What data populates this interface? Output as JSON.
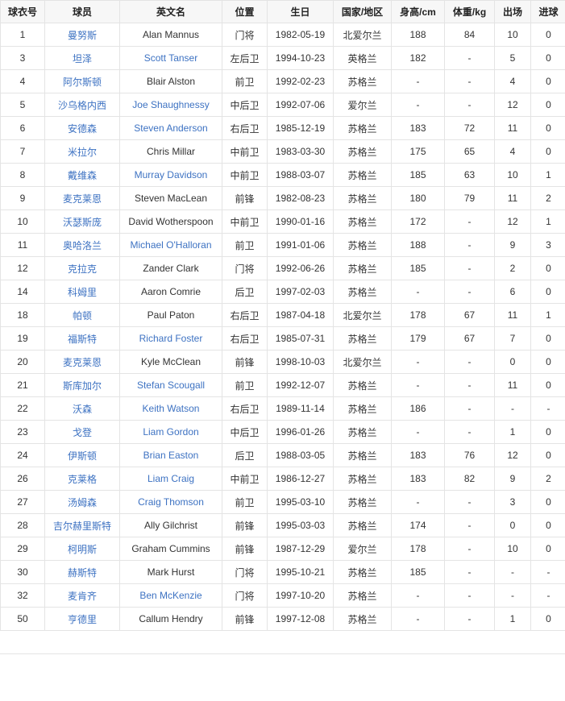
{
  "colors": {
    "link": "#3d72c2",
    "header_bg": "#f7f7f7",
    "border": "#e4e4e4"
  },
  "table": {
    "headers": [
      "球衣号",
      "球员",
      "英文名",
      "位置",
      "生日",
      "国家/地区",
      "身高/cm",
      "体重/kg",
      "出场",
      "进球"
    ],
    "rows": [
      {
        "num": "1",
        "cn": "曼努斯",
        "en": "Alan Mannus",
        "en_link": false,
        "pos": "门将",
        "dob": "1982-05-19",
        "country": "北爱尔兰",
        "height": "188",
        "weight": "84",
        "apps": "10",
        "goals": "0"
      },
      {
        "num": "3",
        "cn": "坦泽",
        "en": "Scott Tanser",
        "en_link": true,
        "pos": "左后卫",
        "dob": "1994-10-23",
        "country": "英格兰",
        "height": "182",
        "weight": "-",
        "apps": "5",
        "goals": "0"
      },
      {
        "num": "4",
        "cn": "阿尔斯顿",
        "en": "Blair Alston",
        "en_link": false,
        "pos": "前卫",
        "dob": "1992-02-23",
        "country": "苏格兰",
        "height": "-",
        "weight": "-",
        "apps": "4",
        "goals": "0"
      },
      {
        "num": "5",
        "cn": "沙乌格内西",
        "en": "Joe Shaughnessy",
        "en_link": true,
        "pos": "中后卫",
        "dob": "1992-07-06",
        "country": "爱尔兰",
        "height": "-",
        "weight": "-",
        "apps": "12",
        "goals": "0"
      },
      {
        "num": "6",
        "cn": "安德森",
        "en": "Steven Anderson",
        "en_link": true,
        "pos": "右后卫",
        "dob": "1985-12-19",
        "country": "苏格兰",
        "height": "183",
        "weight": "72",
        "apps": "11",
        "goals": "0"
      },
      {
        "num": "7",
        "cn": "米拉尔",
        "en": "Chris Millar",
        "en_link": false,
        "pos": "中前卫",
        "dob": "1983-03-30",
        "country": "苏格兰",
        "height": "175",
        "weight": "65",
        "apps": "4",
        "goals": "0"
      },
      {
        "num": "8",
        "cn": "戴维森",
        "en": "Murray Davidson",
        "en_link": true,
        "pos": "中前卫",
        "dob": "1988-03-07",
        "country": "苏格兰",
        "height": "185",
        "weight": "63",
        "apps": "10",
        "goals": "1"
      },
      {
        "num": "9",
        "cn": "麦克莱恩",
        "en": "Steven MacLean",
        "en_link": false,
        "pos": "前锋",
        "dob": "1982-08-23",
        "country": "苏格兰",
        "height": "180",
        "weight": "79",
        "apps": "11",
        "goals": "2"
      },
      {
        "num": "10",
        "cn": "沃瑟斯庞",
        "en": "David Wotherspoon",
        "en_link": false,
        "pos": "中前卫",
        "dob": "1990-01-16",
        "country": "苏格兰",
        "height": "172",
        "weight": "-",
        "apps": "12",
        "goals": "1"
      },
      {
        "num": "11",
        "cn": "奥哈洛兰",
        "en": "Michael O'Halloran",
        "en_link": true,
        "pos": "前卫",
        "dob": "1991-01-06",
        "country": "苏格兰",
        "height": "188",
        "weight": "-",
        "apps": "9",
        "goals": "3"
      },
      {
        "num": "12",
        "cn": "克拉克",
        "en": "Zander Clark",
        "en_link": false,
        "pos": "门将",
        "dob": "1992-06-26",
        "country": "苏格兰",
        "height": "185",
        "weight": "-",
        "apps": "2",
        "goals": "0"
      },
      {
        "num": "14",
        "cn": "科姆里",
        "en": "Aaron Comrie",
        "en_link": false,
        "pos": "后卫",
        "dob": "1997-02-03",
        "country": "苏格兰",
        "height": "-",
        "weight": "-",
        "apps": "6",
        "goals": "0"
      },
      {
        "num": "18",
        "cn": "帕顿",
        "en": "Paul Paton",
        "en_link": false,
        "pos": "右后卫",
        "dob": "1987-04-18",
        "country": "北爱尔兰",
        "height": "178",
        "weight": "67",
        "apps": "11",
        "goals": "1"
      },
      {
        "num": "19",
        "cn": "福斯特",
        "en": "Richard Foster",
        "en_link": true,
        "pos": "右后卫",
        "dob": "1985-07-31",
        "country": "苏格兰",
        "height": "179",
        "weight": "67",
        "apps": "7",
        "goals": "0"
      },
      {
        "num": "20",
        "cn": "麦克莱恩",
        "en": "Kyle McClean",
        "en_link": false,
        "pos": "前锋",
        "dob": "1998-10-03",
        "country": "北爱尔兰",
        "height": "-",
        "weight": "-",
        "apps": "0",
        "goals": "0"
      },
      {
        "num": "21",
        "cn": "斯库加尔",
        "en": "Stefan Scougall",
        "en_link": true,
        "pos": "前卫",
        "dob": "1992-12-07",
        "country": "苏格兰",
        "height": "-",
        "weight": "-",
        "apps": "11",
        "goals": "0"
      },
      {
        "num": "22",
        "cn": "沃森",
        "en": "Keith Watson",
        "en_link": true,
        "pos": "右后卫",
        "dob": "1989-11-14",
        "country": "苏格兰",
        "height": "186",
        "weight": "-",
        "apps": "-",
        "goals": "-"
      },
      {
        "num": "23",
        "cn": "戈登",
        "en": "Liam Gordon",
        "en_link": true,
        "pos": "中后卫",
        "dob": "1996-01-26",
        "country": "苏格兰",
        "height": "-",
        "weight": "-",
        "apps": "1",
        "goals": "0"
      },
      {
        "num": "24",
        "cn": "伊斯顿",
        "en": "Brian Easton",
        "en_link": true,
        "pos": "后卫",
        "dob": "1988-03-05",
        "country": "苏格兰",
        "height": "183",
        "weight": "76",
        "apps": "12",
        "goals": "0"
      },
      {
        "num": "26",
        "cn": "克莱格",
        "en": "Liam Craig",
        "en_link": true,
        "pos": "中前卫",
        "dob": "1986-12-27",
        "country": "苏格兰",
        "height": "183",
        "weight": "82",
        "apps": "9",
        "goals": "2"
      },
      {
        "num": "27",
        "cn": "汤姆森",
        "en": "Craig Thomson",
        "en_link": true,
        "pos": "前卫",
        "dob": "1995-03-10",
        "country": "苏格兰",
        "height": "-",
        "weight": "-",
        "apps": "3",
        "goals": "0"
      },
      {
        "num": "28",
        "cn": "吉尔赫里斯特",
        "en": "Ally Gilchrist",
        "en_link": false,
        "pos": "前锋",
        "dob": "1995-03-03",
        "country": "苏格兰",
        "height": "174",
        "weight": "-",
        "apps": "0",
        "goals": "0"
      },
      {
        "num": "29",
        "cn": "柯明斯",
        "en": "Graham Cummins",
        "en_link": false,
        "pos": "前锋",
        "dob": "1987-12-29",
        "country": "爱尔兰",
        "height": "178",
        "weight": "-",
        "apps": "10",
        "goals": "0"
      },
      {
        "num": "30",
        "cn": "赫斯特",
        "en": "Mark Hurst",
        "en_link": false,
        "pos": "门将",
        "dob": "1995-10-21",
        "country": "苏格兰",
        "height": "185",
        "weight": "-",
        "apps": "-",
        "goals": "-"
      },
      {
        "num": "32",
        "cn": "麦肯齐",
        "en": "Ben McKenzie",
        "en_link": true,
        "pos": "门将",
        "dob": "1997-10-20",
        "country": "苏格兰",
        "height": "-",
        "weight": "-",
        "apps": "-",
        "goals": "-"
      },
      {
        "num": "50",
        "cn": "亨德里",
        "en": "Callum Hendry",
        "en_link": false,
        "pos": "前锋",
        "dob": "1997-12-08",
        "country": "苏格兰",
        "height": "-",
        "weight": "-",
        "apps": "1",
        "goals": "0"
      }
    ]
  }
}
